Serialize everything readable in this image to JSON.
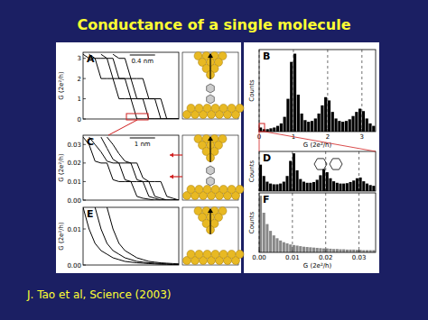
{
  "slide": {
    "title": "Conductance of a single molecule",
    "citation": "J. Tao et al, Science (2003)"
  },
  "chart_data": [
    {
      "type": "line",
      "title": "A",
      "ylabel": "G (2e²/h)",
      "annotations": [
        "0.4 nm"
      ],
      "tick_labels": "y",
      "x": [
        0,
        0.1,
        0.2,
        0.3,
        0.4,
        0.5,
        0.6,
        0.7,
        0.8,
        0.9,
        1.0,
        1.1,
        1.2,
        1.3,
        1.4,
        1.5,
        1.6
      ],
      "xlim": [
        0,
        1.6
      ],
      "ylim": [
        0,
        3.3
      ],
      "yticks": [
        0,
        1,
        2,
        3
      ],
      "series": [
        {
          "color": "#000000",
          "values": [
            3.2,
            3,
            3,
            2,
            2,
            2,
            1,
            1,
            1,
            0,
            0,
            0,
            0,
            0,
            0,
            0,
            0
          ]
        },
        {
          "color": "#000000",
          "values": [
            null,
            3.2,
            3,
            3,
            3,
            2,
            2,
            2,
            1,
            1,
            1,
            0,
            0,
            0,
            0,
            0,
            0
          ]
        },
        {
          "color": "#000000",
          "values": [
            null,
            null,
            null,
            3.2,
            3,
            3,
            2,
            2,
            2,
            1,
            1,
            1,
            1,
            0,
            0,
            0,
            0
          ]
        },
        {
          "color": "#000000",
          "values": [
            null,
            null,
            null,
            null,
            null,
            3.2,
            3,
            3,
            2,
            2,
            2,
            1,
            1,
            1,
            0,
            0,
            0
          ]
        }
      ]
    },
    {
      "type": "histogram",
      "title": "B",
      "xlabel": "G (2e²/h)",
      "ylabel": "Counts",
      "tick_labels": "x",
      "grid": true,
      "color": "#000000",
      "bins": [
        0,
        0.1,
        0.2,
        0.3,
        0.4,
        0.5,
        0.6,
        0.7,
        0.8,
        0.9,
        1.0,
        1.1,
        1.2,
        1.3,
        1.4,
        1.5,
        1.6,
        1.7,
        1.8,
        1.9,
        2.0,
        2.1,
        2.2,
        2.3,
        2.4,
        2.5,
        2.6,
        2.7,
        2.8,
        2.9,
        3.0,
        3.1,
        3.2,
        3.3,
        3.4
      ],
      "counts": [
        5,
        3,
        3,
        4,
        5,
        7,
        10,
        18,
        40,
        85,
        95,
        45,
        22,
        14,
        12,
        13,
        16,
        22,
        32,
        42,
        38,
        24,
        16,
        13,
        12,
        13,
        15,
        19,
        24,
        28,
        25,
        16,
        10,
        7
      ],
      "xlim": [
        0,
        3.4
      ],
      "ylim": [
        0,
        100
      ],
      "xticks": [
        0,
        1,
        2,
        3
      ]
    },
    {
      "type": "line",
      "title": "C",
      "ylabel": "G (2e²/h)",
      "annotations": [
        "1 nm"
      ],
      "tick_labels": "y",
      "x": [
        0,
        0.1,
        0.2,
        0.3,
        0.4,
        0.5,
        0.6,
        0.7,
        0.8,
        0.9,
        1.0,
        1.1,
        1.2,
        1.3,
        1.4,
        1.5,
        1.6
      ],
      "xlim": [
        0,
        1.6
      ],
      "ylim": [
        0,
        0.035
      ],
      "yticks": [
        {
          "value": 0,
          "label": "0.00"
        },
        0.01,
        0.02,
        0.03
      ],
      "series": [
        {
          "color": "#000000",
          "values": [
            0.034,
            0.03,
            0.021,
            0.02,
            0.02,
            0.011,
            0.01,
            0.01,
            0.01,
            0.002,
            0.001,
            0.0005,
            0,
            0,
            0,
            0,
            0
          ]
        },
        {
          "color": "#000000",
          "values": [
            null,
            0.034,
            0.03,
            0.026,
            0.021,
            0.02,
            0.02,
            0.011,
            0.01,
            0.01,
            0.01,
            0.002,
            0.001,
            0,
            0,
            0,
            0
          ]
        },
        {
          "color": "#000000",
          "values": [
            null,
            null,
            null,
            0.034,
            0.028,
            0.022,
            0.02,
            0.02,
            0.02,
            0.011,
            0.01,
            0.01,
            0.002,
            0.001,
            0,
            0,
            0
          ]
        },
        {
          "color": "#000000",
          "values": [
            null,
            null,
            null,
            null,
            0.034,
            0.03,
            0.025,
            0.021,
            0.02,
            0.02,
            0.012,
            0.01,
            0.01,
            0.01,
            0.002,
            0.001,
            0
          ]
        }
      ]
    },
    {
      "type": "histogram",
      "title": "D",
      "ylabel": "Counts",
      "tick_labels": false,
      "grid": true,
      "color": "#000000",
      "bins": [
        0,
        0.001,
        0.002,
        0.003,
        0.004,
        0.005,
        0.006,
        0.007,
        0.008,
        0.009,
        0.01,
        0.011,
        0.012,
        0.013,
        0.014,
        0.015,
        0.016,
        0.017,
        0.018,
        0.019,
        0.02,
        0.021,
        0.022,
        0.023,
        0.024,
        0.025,
        0.026,
        0.027,
        0.028,
        0.029,
        0.03,
        0.031,
        0.032,
        0.033,
        0.034,
        0.035
      ],
      "counts": [
        70,
        40,
        25,
        20,
        18,
        18,
        20,
        25,
        40,
        80,
        100,
        55,
        32,
        25,
        22,
        22,
        24,
        30,
        42,
        58,
        50,
        34,
        26,
        22,
        20,
        20,
        21,
        24,
        28,
        34,
        36,
        26,
        20,
        16,
        14
      ],
      "xlim": [
        0,
        0.035
      ],
      "ylim": [
        0,
        105
      ],
      "xticks": [
        0,
        0.01,
        0.02,
        0.03
      ]
    },
    {
      "type": "line",
      "title": "E",
      "ylabel": "G (2e²/h)",
      "tick_labels": "y",
      "x": [
        0,
        0.1,
        0.2,
        0.3,
        0.4,
        0.5,
        0.6,
        0.7,
        0.8,
        0.9,
        1.0,
        1.1,
        1.2,
        1.3,
        1.4,
        1.5,
        1.6
      ],
      "xlim": [
        0,
        1.6
      ],
      "ylim": [
        0,
        0.016
      ],
      "yticks": [
        {
          "value": 0,
          "label": "0.00"
        },
        0.01
      ],
      "series": [
        {
          "color": "#000000",
          "values": [
            0.016,
            0.01,
            0.006,
            0.004,
            0.003,
            0.002,
            0.0015,
            0.001,
            0.0008,
            0.0006,
            0.0005,
            0.0004,
            0.0003,
            0.0002,
            0.0002,
            0.0001,
            0.0001
          ]
        },
        {
          "color": "#000000",
          "values": [
            null,
            null,
            0.016,
            0.01,
            0.006,
            0.004,
            0.003,
            0.002,
            0.0015,
            0.001,
            0.0008,
            0.0006,
            0.0005,
            0.0004,
            0.0003,
            0.0002,
            0.0002
          ]
        },
        {
          "color": "#000000",
          "values": [
            null,
            null,
            null,
            null,
            0.016,
            0.01,
            0.006,
            0.004,
            0.003,
            0.002,
            0.0015,
            0.001,
            0.0008,
            0.0006,
            0.0005,
            0.0004,
            0.0003
          ]
        }
      ]
    },
    {
      "type": "histogram",
      "title": "F",
      "xlabel": "G (2e²/h)",
      "ylabel": "Counts",
      "tick_labels": "x",
      "grid": true,
      "color": "#888888",
      "bins": [
        0,
        0.001,
        0.002,
        0.003,
        0.004,
        0.005,
        0.006,
        0.007,
        0.008,
        0.009,
        0.01,
        0.011,
        0.012,
        0.013,
        0.014,
        0.015,
        0.016,
        0.017,
        0.018,
        0.019,
        0.02,
        0.021,
        0.022,
        0.023,
        0.024,
        0.025,
        0.026,
        0.027,
        0.028,
        0.029,
        0.03,
        0.031,
        0.032,
        0.033,
        0.034,
        0.035
      ],
      "counts": [
        100,
        70,
        50,
        38,
        30,
        25,
        21,
        18,
        16,
        14,
        13,
        12,
        11,
        10,
        9.5,
        9,
        8.5,
        8,
        7.5,
        7,
        7,
        6.5,
        6,
        6,
        5.5,
        5.5,
        5,
        5,
        5,
        4.5,
        4.5,
        4,
        4,
        4,
        4
      ],
      "xlim": [
        0,
        0.035
      ],
      "ylim": [
        0,
        105
      ],
      "xticks": [
        {
          "value": 0,
          "label": "0.00"
        },
        0.01,
        0.02,
        0.03
      ]
    }
  ]
}
